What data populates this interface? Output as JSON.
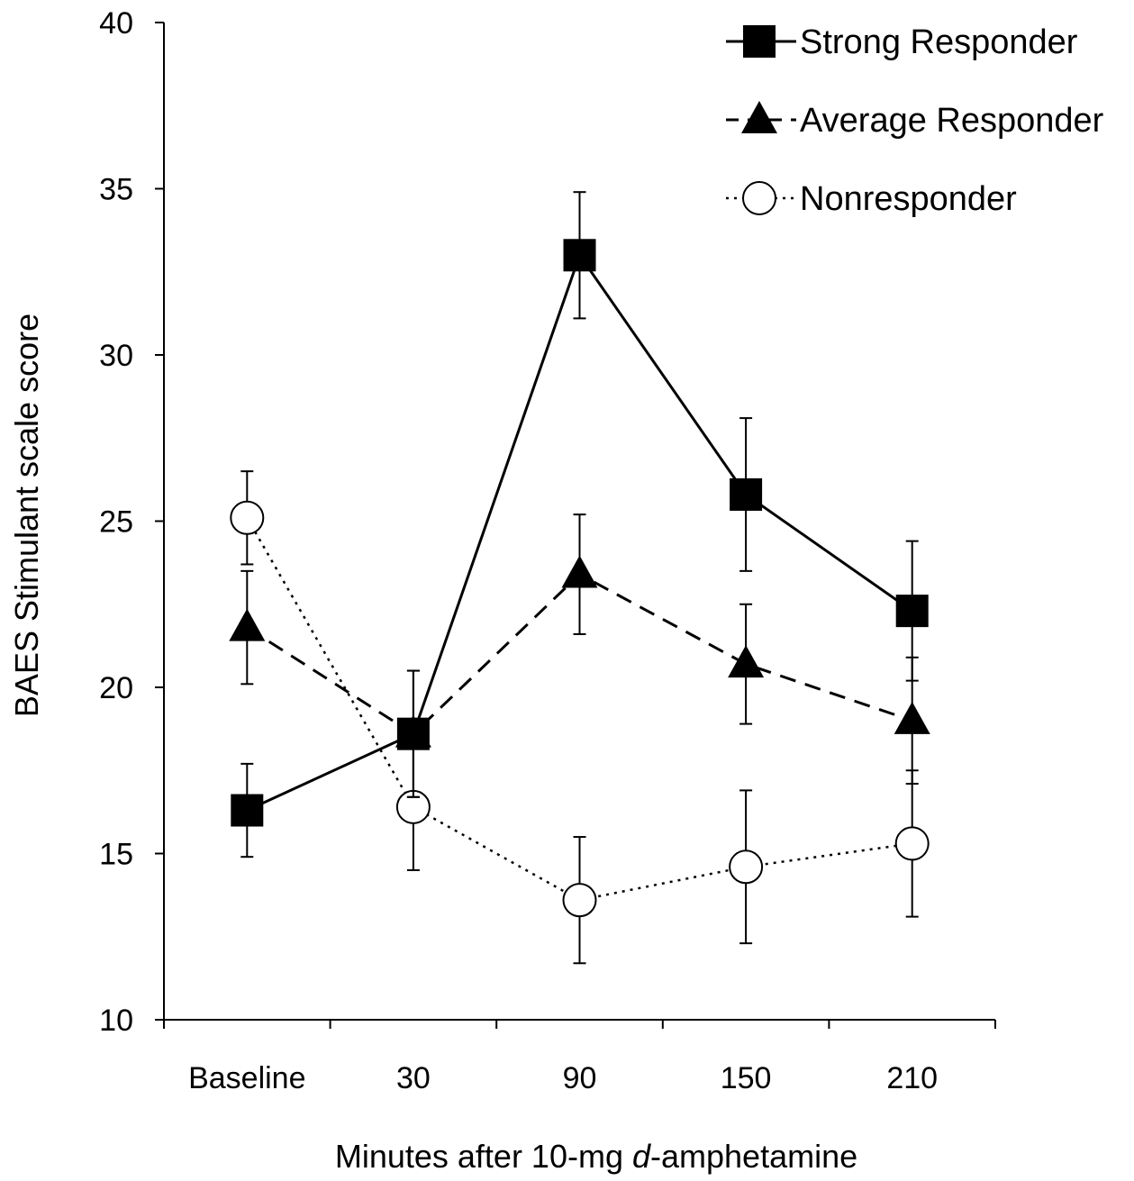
{
  "chart_data": {
    "type": "line",
    "title": "",
    "xlabel": {
      "before": "Minutes after 10-mg ",
      "italic": "d",
      "after": "-amphetamine"
    },
    "ylabel": "BAES Stimulant scale score",
    "ylim": [
      10,
      40
    ],
    "yticks": [
      "10",
      "15",
      "20",
      "25",
      "30",
      "35",
      "40"
    ],
    "categories": [
      "Baseline",
      "30",
      "90",
      "150",
      "210"
    ],
    "grid": false,
    "legend_position": "top-right",
    "series": [
      {
        "name": "Strong Responder",
        "values": [
          16.3,
          18.6,
          33.0,
          25.8,
          22.3
        ],
        "errors": [
          1.4,
          1.9,
          1.9,
          2.3,
          2.1
        ],
        "marker": "filled-square",
        "line_style": "solid",
        "color": "#000000"
      },
      {
        "name": "Average Responder",
        "values": [
          21.8,
          18.6,
          23.4,
          20.7,
          19.0
        ],
        "errors": [
          1.7,
          1.9,
          1.8,
          1.8,
          1.9
        ],
        "marker": "filled-triangle",
        "line_style": "dashed",
        "color": "#000000"
      },
      {
        "name": "Nonresponder",
        "values": [
          25.1,
          16.4,
          13.6,
          14.6,
          15.3
        ],
        "errors": [
          1.4,
          1.9,
          1.9,
          2.3,
          2.2
        ],
        "marker": "open-circle",
        "line_style": "dotted",
        "color": "#000000"
      }
    ]
  }
}
